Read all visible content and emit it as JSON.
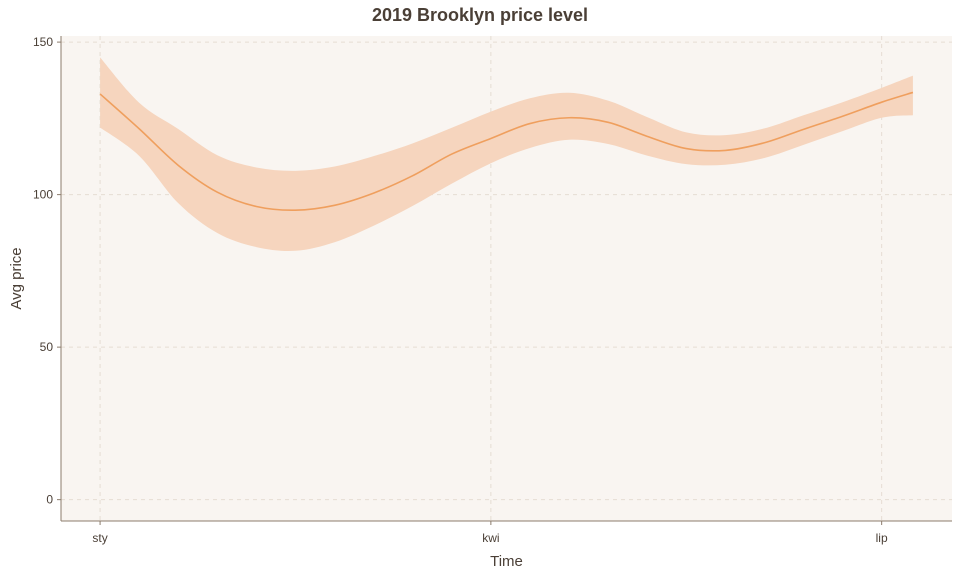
{
  "chart_data": {
    "type": "line",
    "title": "2019 Brooklyn price level",
    "xlabel": "Time",
    "ylabel": "Avg price",
    "x_tick_labels": [
      "sty",
      "kwi",
      "lip"
    ],
    "y_ticks": [
      0,
      50,
      100,
      150
    ],
    "ylim": [
      -7,
      152
    ],
    "xlim": [
      -0.1,
      2.18
    ],
    "grid": true,
    "colors": {
      "line": "#ef9f5e",
      "band": "#f6d5be",
      "panel_background": "#f9f5f1",
      "grid": "#e6ddd3",
      "axis": "#8c7c6c"
    },
    "series": [
      {
        "x": [
          0,
          0.1,
          0.2,
          0.3,
          0.4,
          0.5,
          0.6,
          0.7,
          0.8,
          0.9,
          1.0,
          1.1,
          1.2,
          1.3,
          1.4,
          1.5,
          1.6,
          1.7,
          1.8,
          1.9,
          2.0,
          2.08
        ],
        "y": [
          133,
          121.6,
          109.6,
          100.8,
          96.1,
          94.9,
          96.5,
          100.5,
          106.2,
          113.3,
          118.4,
          123.3,
          125.2,
          123.7,
          119.1,
          115.1,
          114.5,
          117.0,
          121.4,
          125.7,
          130.3,
          133.5
        ],
        "lower": [
          122,
          112.7,
          97.2,
          87.4,
          82.8,
          81.6,
          84.4,
          89.8,
          96.3,
          103.6,
          110.3,
          115.3,
          118.0,
          116.6,
          112.8,
          110.0,
          109.8,
          112.0,
          116.3,
          120.8,
          125.2,
          126.0
        ],
        "upper": [
          145,
          130.1,
          121.5,
          112.9,
          108.9,
          107.8,
          109.2,
          112.6,
          116.8,
          121.9,
          127.2,
          131.6,
          133.4,
          130.8,
          125.4,
          120.4,
          119.5,
          121.7,
          126.0,
          130.3,
          135.0,
          139.0
        ]
      }
    ]
  }
}
